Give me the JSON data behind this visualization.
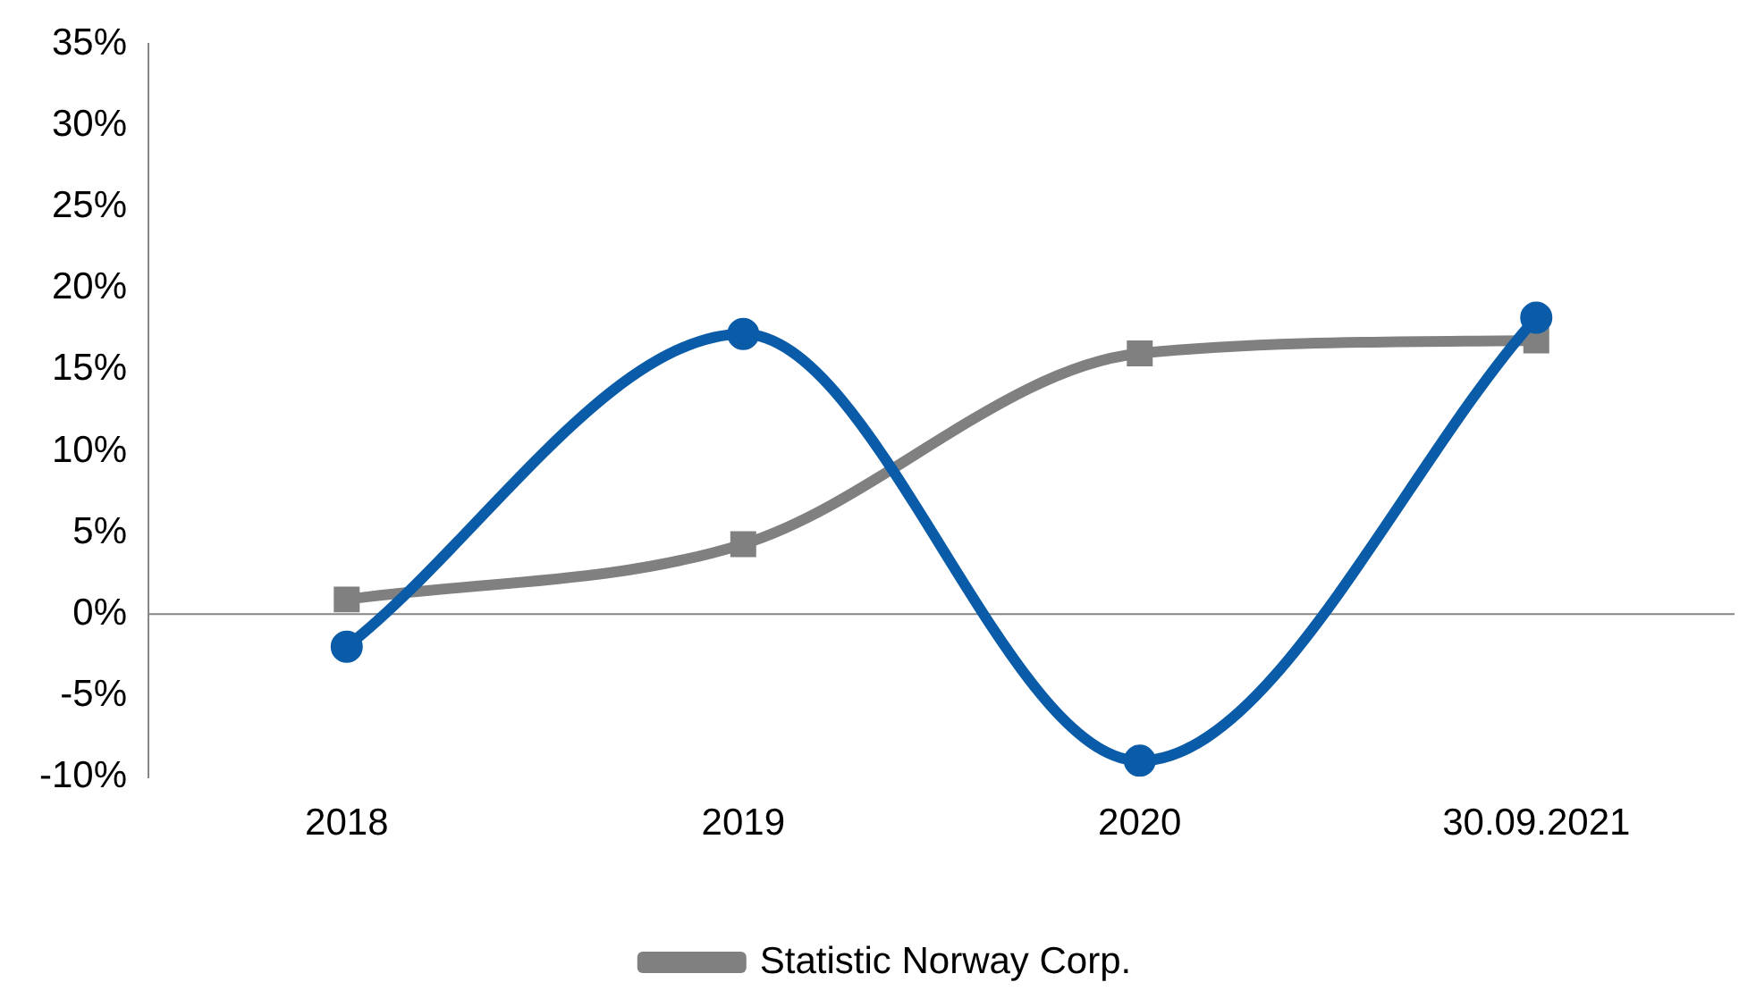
{
  "chart_data": {
    "type": "line",
    "categories": [
      "2018",
      "2019",
      "2020",
      "30.09.2021"
    ],
    "series": [
      {
        "color": "#0a5ca8",
        "values": [
          -2,
          17.2,
          -9,
          18.2
        ],
        "marker": "circle"
      },
      {
        "name": "Statistic Norway Corp.",
        "color": "#808080",
        "values": [
          0.9,
          4.3,
          16,
          16.8
        ],
        "marker": "square"
      }
    ],
    "ylim": [
      -10,
      35
    ],
    "yticks": [
      {
        "value": -10,
        "label": "-10%"
      },
      {
        "value": -5,
        "label": "-5%"
      },
      {
        "value": 0,
        "label": "0%"
      },
      {
        "value": 5,
        "label": "5%"
      },
      {
        "value": 10,
        "label": "10%"
      },
      {
        "value": 15,
        "label": "15%"
      },
      {
        "value": 20,
        "label": "20%"
      },
      {
        "value": 25,
        "label": "25%"
      },
      {
        "value": 30,
        "label": "30%"
      },
      {
        "value": 35,
        "label": "35%"
      }
    ],
    "ref_lines": [
      {
        "axis": "y",
        "value": 0,
        "color": "#868686"
      }
    ],
    "legend": "bottom"
  }
}
